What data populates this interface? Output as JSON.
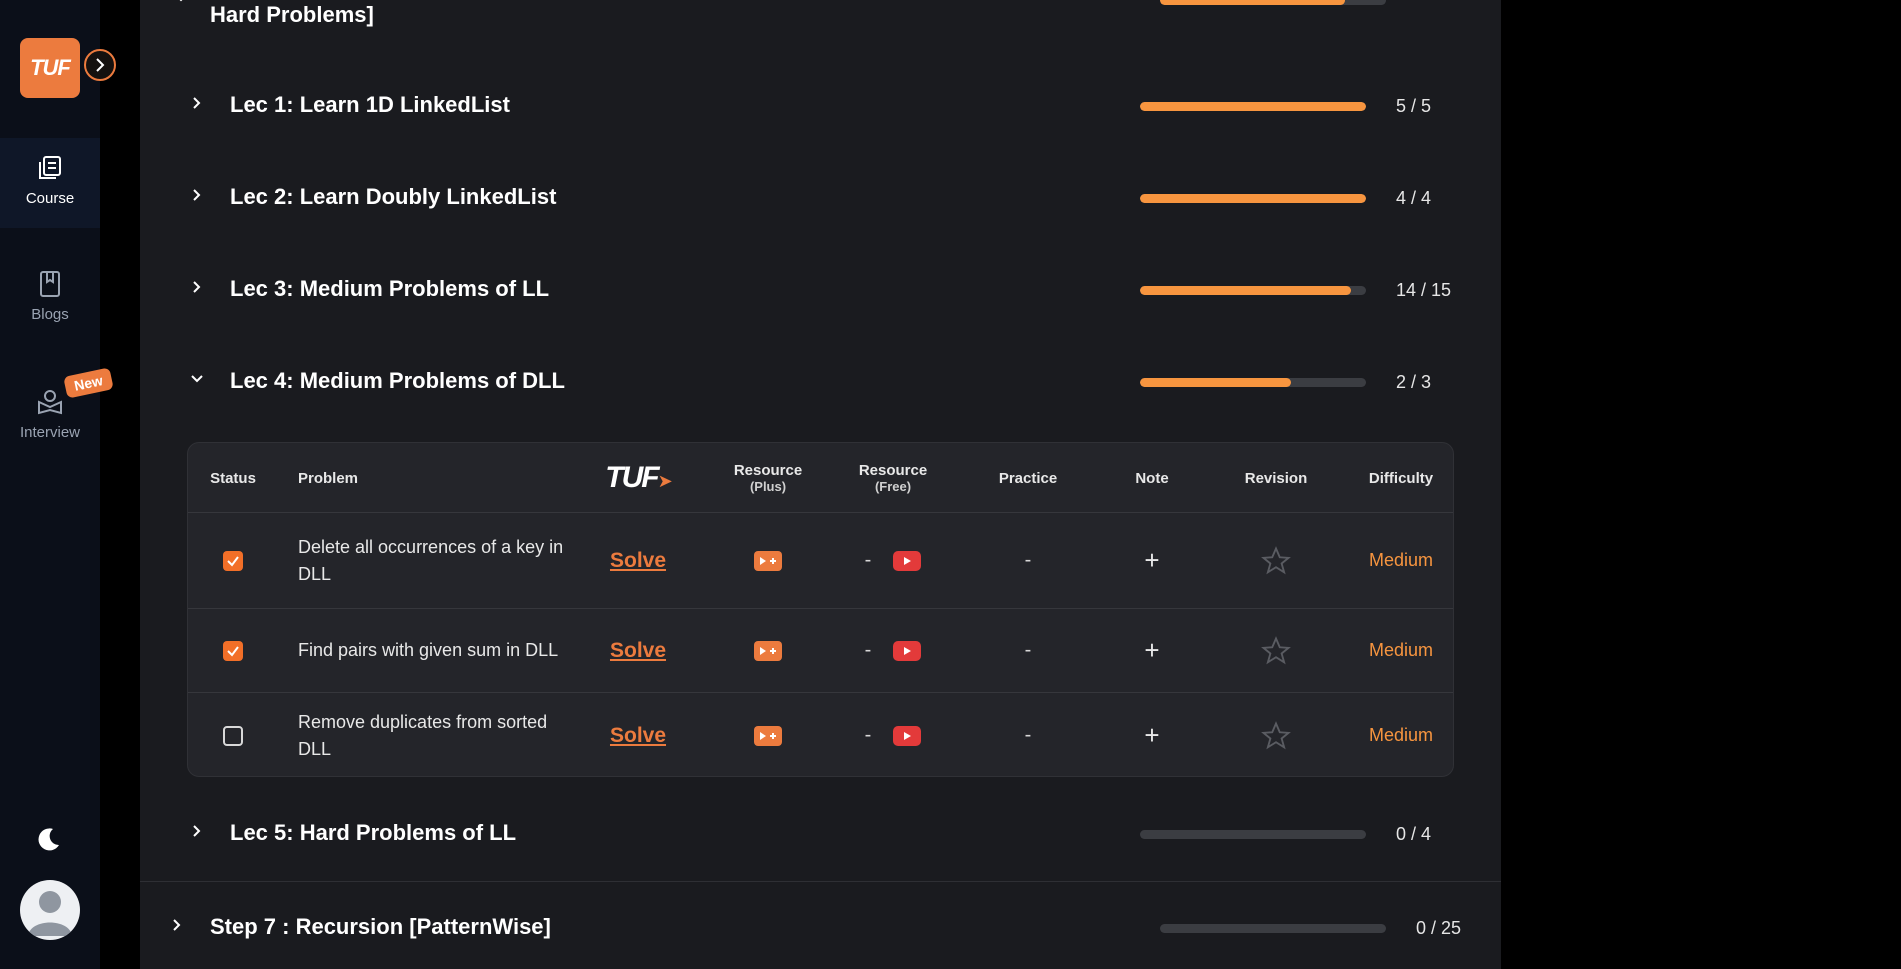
{
  "sidebar": {
    "logo_text": "TUF",
    "items": [
      {
        "label": "Course",
        "icon": "course-icon"
      },
      {
        "label": "Blogs",
        "icon": "blog-icon"
      },
      {
        "label": "Interview",
        "icon": "interview-icon"
      }
    ],
    "new_badge": "New"
  },
  "step_top": {
    "title": "Hard Problems]"
  },
  "lectures": [
    {
      "title": "Lec 1: Learn 1D LinkedList",
      "done": 5,
      "total": 5,
      "count": "5 / 5"
    },
    {
      "title": "Lec 2: Learn Doubly LinkedList",
      "done": 4,
      "total": 4,
      "count": "4 / 4"
    },
    {
      "title": "Lec 3: Medium Problems of LL",
      "done": 14,
      "total": 15,
      "count": "14 / 15"
    },
    {
      "title": "Lec 4: Medium Problems of DLL",
      "done": 2,
      "total": 3,
      "count": "2 / 3"
    },
    {
      "title": "Lec 5: Hard Problems of LL",
      "done": 0,
      "total": 4,
      "count": "0 / 4"
    }
  ],
  "table": {
    "headers": {
      "status": "Status",
      "problem": "Problem",
      "tuf": "TUF",
      "res_plus": "Resource",
      "res_plus_sub": "(Plus)",
      "res_free": "Resource",
      "res_free_sub": "(Free)",
      "practice": "Practice",
      "note": "Note",
      "revision": "Revision",
      "difficulty": "Difficulty"
    },
    "rows": [
      {
        "problem": "Delete all occurrences of a key in DLL",
        "checked": true,
        "solve": "Solve",
        "free_dash": "-",
        "practice": "-",
        "note": "+",
        "difficulty": "Medium"
      },
      {
        "problem": "Find pairs with given sum in DLL",
        "checked": true,
        "solve": "Solve",
        "free_dash": "-",
        "practice": "-",
        "note": "+",
        "difficulty": "Medium"
      },
      {
        "problem": "Remove duplicates from sorted DLL",
        "checked": false,
        "solve": "Solve",
        "free_dash": "-",
        "practice": "-",
        "note": "+",
        "difficulty": "Medium"
      }
    ]
  },
  "step_bottom": {
    "title": "Step 7 : Recursion [PatternWise]",
    "done": 0,
    "total": 25,
    "count": "0 / 25"
  },
  "colors": {
    "accent": "#ec7b3e",
    "progress": "#f7953f",
    "youtube": "#e33a3a"
  }
}
